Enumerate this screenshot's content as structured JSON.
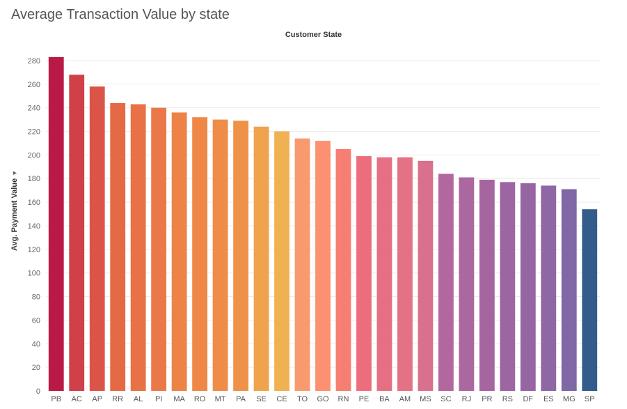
{
  "title": "Average Transaction Value by state",
  "sort_icon": "sort-descending-icon",
  "chart_data": {
    "type": "bar",
    "title": "Average Transaction Value by state",
    "column_header": "Customer State",
    "xlabel": "",
    "ylabel": "Avg. Payment Value",
    "ylim": [
      0,
      290
    ],
    "yticks": [
      0,
      20,
      40,
      60,
      80,
      100,
      120,
      140,
      160,
      180,
      200,
      220,
      240,
      260,
      280
    ],
    "grid": true,
    "categories": [
      "PB",
      "AC",
      "AP",
      "RR",
      "AL",
      "PI",
      "MA",
      "RO",
      "MT",
      "PA",
      "SE",
      "CE",
      "TO",
      "GO",
      "RN",
      "PE",
      "BA",
      "AM",
      "MS",
      "SC",
      "RJ",
      "PR",
      "RS",
      "DF",
      "ES",
      "MG",
      "SP"
    ],
    "values": [
      283,
      268,
      258,
      244,
      243,
      240,
      236,
      232,
      230,
      229,
      224,
      220,
      214,
      212,
      205,
      199,
      198,
      198,
      195,
      184,
      181,
      179,
      177,
      176,
      174,
      171,
      154
    ],
    "colors": [
      "#b91a45",
      "#d04049",
      "#db5448",
      "#e46a46",
      "#e87146",
      "#eb7848",
      "#ee8347",
      "#ef8847",
      "#ef8c47",
      "#ef9249",
      "#f0a24d",
      "#f0b152",
      "#f89a6e",
      "#fb9172",
      "#f77e72",
      "#ec6e7c",
      "#e66f84",
      "#e47285",
      "#d9708c",
      "#b2689e",
      "#ab67a0",
      "#a566a0",
      "#9d66a2",
      "#9666a3",
      "#8f67a4",
      "#7f68a5",
      "#345c8b"
    ]
  }
}
